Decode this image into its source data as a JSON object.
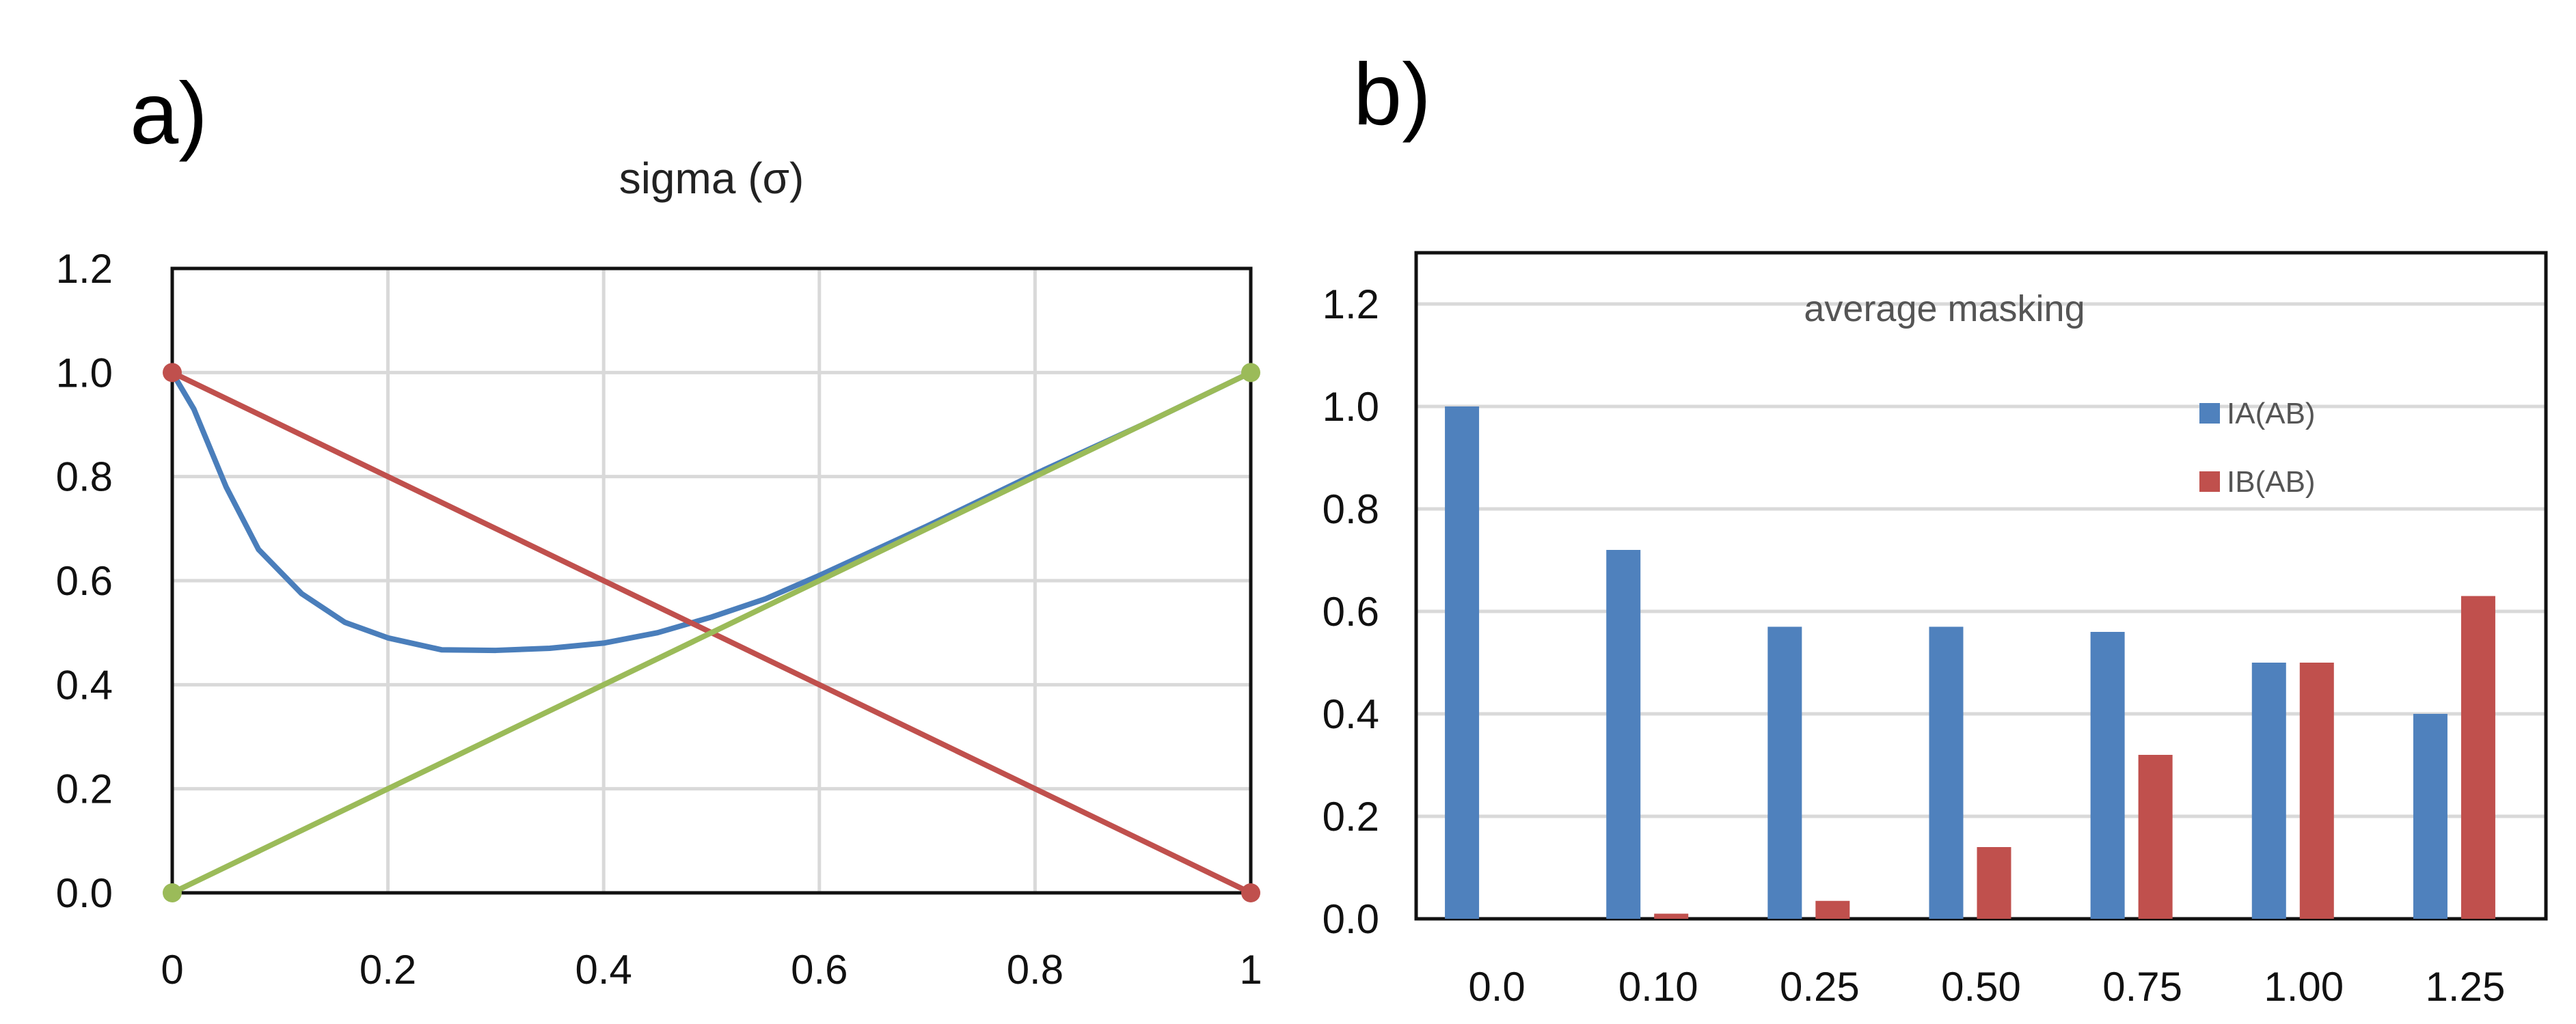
{
  "labels": {
    "a": "a)",
    "b": "b)"
  },
  "chart_data": [
    {
      "type": "line",
      "title": "sigma (σ)",
      "xlim": [
        0,
        1
      ],
      "ylim": [
        0,
        1.2
      ],
      "x_ticks": [
        "0",
        "0.2",
        "0.4",
        "0.6",
        "0.8",
        "1"
      ],
      "y_ticks": [
        "0.0",
        "0.2",
        "0.4",
        "0.6",
        "0.8",
        "1.0",
        "1.2"
      ],
      "grid": true,
      "series": [
        {
          "name": "blue curve",
          "color": "#4a7ebb",
          "points": [
            [
              0,
              1.0
            ],
            [
              0.02,
              0.93
            ],
            [
              0.05,
              0.78
            ],
            [
              0.08,
              0.66
            ],
            [
              0.12,
              0.575
            ],
            [
              0.16,
              0.52
            ],
            [
              0.2,
              0.49
            ],
            [
              0.25,
              0.467
            ],
            [
              0.3,
              0.466
            ],
            [
              0.35,
              0.47
            ],
            [
              0.4,
              0.48
            ],
            [
              0.45,
              0.5
            ],
            [
              0.5,
              0.53
            ],
            [
              0.55,
              0.565
            ],
            [
              0.6,
              0.61
            ],
            [
              0.7,
              0.705
            ],
            [
              0.8,
              0.805
            ],
            [
              0.9,
              0.9
            ],
            [
              1.0,
              1.0
            ]
          ]
        },
        {
          "name": "red line",
          "color": "#c0504d",
          "points": [
            [
              0,
              1.0
            ],
            [
              1,
              0.0
            ]
          ],
          "markers": true
        },
        {
          "name": "green line",
          "color": "#9bbb59",
          "points": [
            [
              0,
              0.0
            ],
            [
              1,
              1.0
            ]
          ],
          "markers": true
        }
      ]
    },
    {
      "type": "bar",
      "title": "average masking",
      "categories": [
        "0.0",
        "0.10",
        "0.25",
        "0.50",
        "0.75",
        "1.00",
        "1.25"
      ],
      "ylim": [
        0,
        1.3
      ],
      "y_ticks": [
        "0.0",
        "0.2",
        "0.4",
        "0.6",
        "0.8",
        "1.0",
        "1.2"
      ],
      "grid": true,
      "legend_position": "top-right",
      "series": [
        {
          "name": "IA(AB)",
          "color": "#4f81bd",
          "values": [
            1.0,
            0.72,
            0.57,
            0.57,
            0.56,
            0.5,
            0.4
          ]
        },
        {
          "name": "IB(AB)",
          "color": "#c0504d",
          "values": [
            0.0,
            0.01,
            0.035,
            0.14,
            0.32,
            0.5,
            0.63
          ]
        }
      ]
    }
  ]
}
